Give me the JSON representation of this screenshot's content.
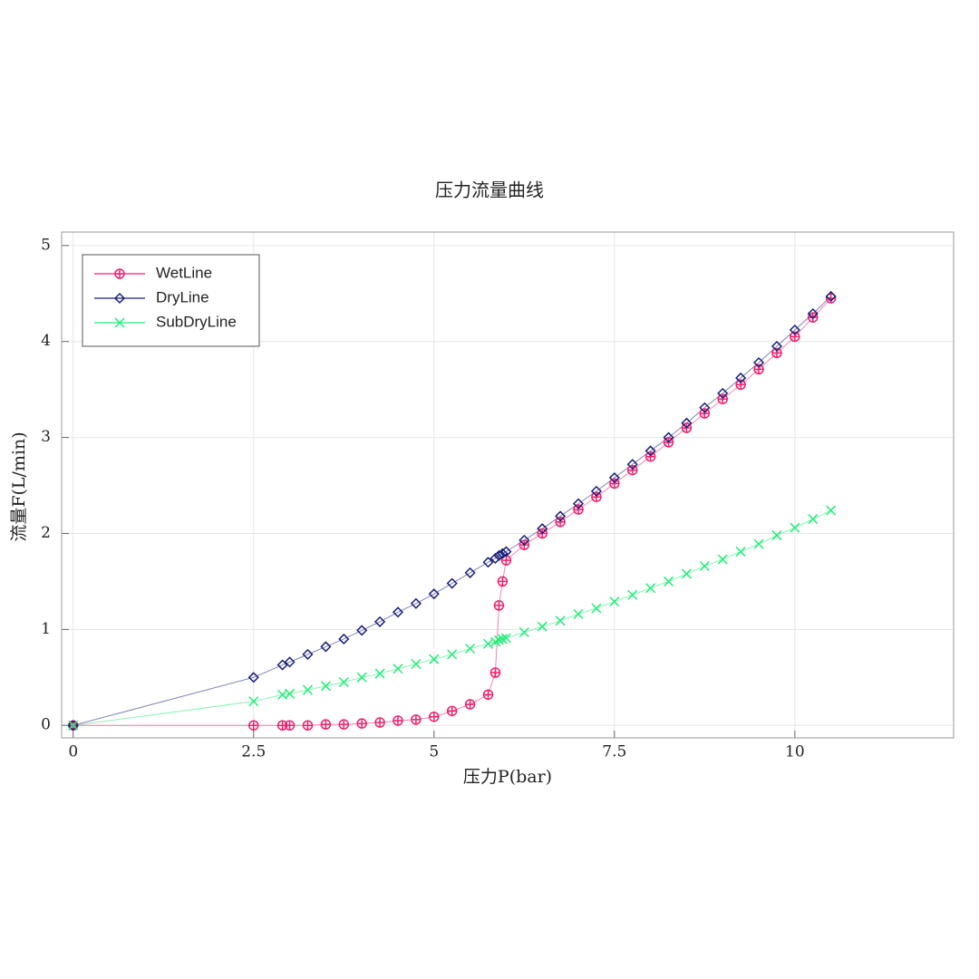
{
  "chart_data": {
    "type": "line",
    "title": "压力流量曲线",
    "x_label": "压力P(bar)",
    "y_label": "流量F(L/min)",
    "x": [
      0,
      2.5,
      2.9,
      3,
      3.25,
      3.5,
      3.75,
      4,
      4.25,
      4.5,
      4.75,
      5,
      5.25,
      5.5,
      5.75,
      5.85,
      5.9,
      5.95,
      6,
      6.25,
      6.5,
      6.75,
      7,
      7.25,
      7.5,
      7.75,
      8,
      8.25,
      8.5,
      8.75,
      9,
      9.25,
      9.5,
      9.75,
      10,
      10.25,
      10.5
    ],
    "series": [
      {
        "name": "WetLine",
        "color": "#f0206e",
        "marker": "circle-plus",
        "values": [
          0,
          0,
          0,
          0,
          0,
          0.01,
          0.01,
          0.02,
          0.03,
          0.05,
          0.06,
          0.09,
          0.15,
          0.22,
          0.32,
          0.55,
          1.25,
          1.5,
          1.72,
          1.88,
          2.0,
          2.12,
          2.25,
          2.38,
          2.52,
          2.66,
          2.8,
          2.95,
          3.1,
          3.25,
          3.4,
          3.55,
          3.71,
          3.88,
          4.05,
          4.25,
          4.45
        ]
      },
      {
        "name": "DryLine",
        "color": "#1a1f78",
        "marker": "diamond",
        "values": [
          0,
          0.5,
          0.63,
          0.66,
          0.74,
          0.82,
          0.9,
          0.99,
          1.08,
          1.18,
          1.27,
          1.37,
          1.48,
          1.59,
          1.7,
          1.74,
          1.77,
          1.79,
          1.81,
          1.93,
          2.05,
          2.18,
          2.31,
          2.44,
          2.58,
          2.72,
          2.86,
          3.0,
          3.15,
          3.31,
          3.46,
          3.62,
          3.78,
          3.95,
          4.12,
          4.29,
          4.47
        ]
      },
      {
        "name": "SubDryLine",
        "color": "#22ee77",
        "marker": "cross",
        "values": [
          0,
          0.25,
          0.32,
          0.33,
          0.37,
          0.41,
          0.45,
          0.5,
          0.54,
          0.59,
          0.64,
          0.69,
          0.74,
          0.8,
          0.85,
          0.87,
          0.89,
          0.9,
          0.91,
          0.97,
          1.03,
          1.09,
          1.16,
          1.22,
          1.29,
          1.36,
          1.43,
          1.5,
          1.58,
          1.66,
          1.73,
          1.81,
          1.89,
          1.98,
          2.06,
          2.15,
          2.24
        ]
      }
    ],
    "xlim": [
      -0.16,
      12.2
    ],
    "ylim": [
      -0.13,
      5.14
    ],
    "xticks": [
      0,
      2.5,
      5,
      7.5,
      10
    ],
    "yticks": [
      0,
      1,
      2,
      3,
      4,
      5
    ],
    "grid": true,
    "legend": "upper left"
  }
}
